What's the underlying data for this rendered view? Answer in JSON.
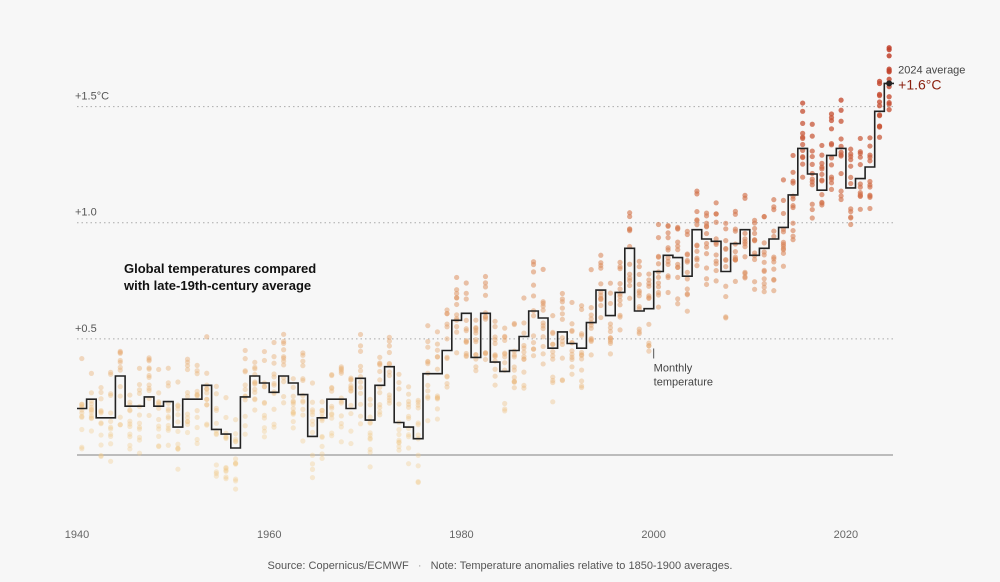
{
  "footer": {
    "source": "Source: Copernicus/ECMWF",
    "separator": "·",
    "note": "Note: Temperature anomalies relative to 1850-1900 averages."
  },
  "chart_data": {
    "type": "line",
    "title": "Global temperatures compared\nwith late-19th-century average",
    "xlabel": "",
    "ylabel": "",
    "xlim": [
      1940,
      2024.9
    ],
    "ylim": [
      -0.28,
      1.83
    ],
    "x_ticks": [
      1940,
      1960,
      1980,
      2000,
      2020
    ],
    "y_ticks": [
      {
        "value": 1.5,
        "label": "+1.5°C"
      },
      {
        "value": 1.0,
        "label": "+1.0"
      },
      {
        "value": 0.5,
        "label": "+0.5"
      }
    ],
    "baseline": 0,
    "grid": "dotted horizontal at labeled ticks",
    "annotual_avg_note": "",
    "series": [
      {
        "name": "annual average",
        "style": "step",
        "x": [
          1940,
          1941,
          1942,
          1943,
          1944,
          1945,
          1946,
          1947,
          1948,
          1949,
          1950,
          1951,
          1952,
          1953,
          1954,
          1955,
          1956,
          1957,
          1958,
          1959,
          1960,
          1961,
          1962,
          1963,
          1964,
          1965,
          1966,
          1967,
          1968,
          1969,
          1970,
          1971,
          1972,
          1973,
          1974,
          1975,
          1976,
          1977,
          1978,
          1979,
          1980,
          1981,
          1982,
          1983,
          1984,
          1985,
          1986,
          1987,
          1988,
          1989,
          1990,
          1991,
          1992,
          1993,
          1994,
          1995,
          1996,
          1997,
          1998,
          1999,
          2000,
          2001,
          2002,
          2003,
          2004,
          2005,
          2006,
          2007,
          2008,
          2009,
          2010,
          2011,
          2012,
          2013,
          2014,
          2015,
          2016,
          2017,
          2018,
          2019,
          2020,
          2021,
          2022,
          2023,
          2024
        ],
        "values": [
          0.2,
          0.24,
          0.16,
          0.16,
          0.34,
          0.21,
          0.21,
          0.25,
          0.21,
          0.23,
          0.12,
          0.24,
          0.24,
          0.3,
          0.11,
          0.09,
          0.03,
          0.25,
          0.34,
          0.31,
          0.27,
          0.34,
          0.31,
          0.26,
          0.08,
          0.16,
          0.24,
          0.24,
          0.2,
          0.33,
          0.15,
          0.3,
          0.38,
          0.14,
          0.12,
          0.07,
          0.35,
          0.35,
          0.45,
          0.58,
          0.61,
          0.42,
          0.61,
          0.4,
          0.36,
          0.45,
          0.51,
          0.62,
          0.59,
          0.46,
          0.53,
          0.48,
          0.46,
          0.57,
          0.71,
          0.6,
          0.7,
          0.89,
          0.62,
          0.63,
          0.79,
          0.86,
          0.85,
          0.77,
          0.97,
          0.93,
          0.92,
          0.79,
          0.91,
          0.97,
          0.86,
          0.89,
          0.93,
          0.98,
          1.12,
          1.32,
          1.21,
          1.14,
          1.29,
          1.32,
          1.15,
          1.19,
          1.24,
          1.48,
          1.6
        ]
      },
      {
        "name": "Monthly temperature",
        "style": "dots",
        "x": [],
        "values": []
      }
    ],
    "annotations": [
      {
        "text": "Monthly\ntemperature",
        "x": 2000,
        "y": 0.45
      },
      {
        "label": "2024 average",
        "value_text": "+1.6°C",
        "x": 2024,
        "y": 1.6
      }
    ],
    "colors": {
      "annual_line": "#222222",
      "dots_low": "#f1c987",
      "dots_high": "#c0402a",
      "value_text": "#8a1f0e",
      "baseline": "#999999",
      "grid": "#aaaaaa"
    }
  }
}
